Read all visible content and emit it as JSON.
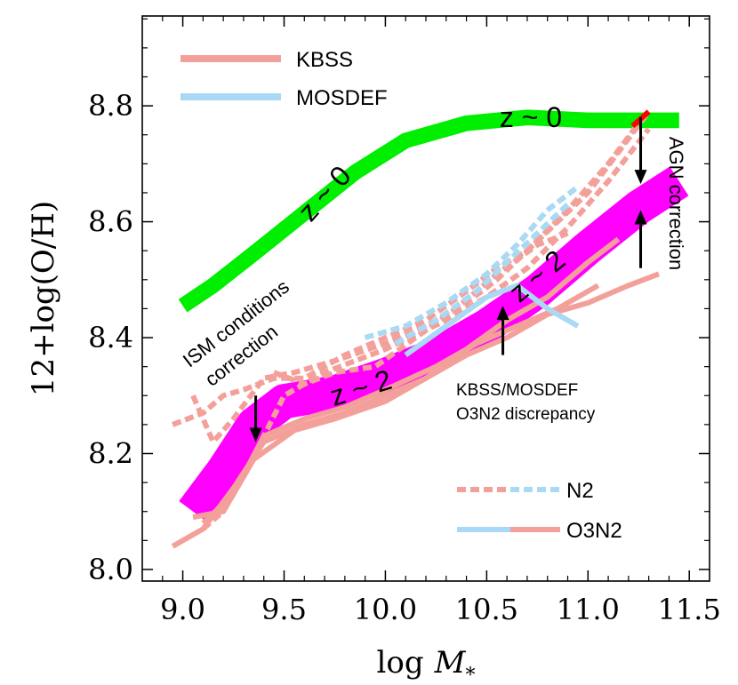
{
  "chart_data": {
    "type": "line",
    "xlabel_main": "log",
    "xlabel_var": "M",
    "xlabel_sub": "*",
    "ylabel": "12+log(O/H)",
    "xlim": [
      8.8,
      11.6
    ],
    "ylim": [
      7.98,
      8.955
    ],
    "x_ticks": [
      9.0,
      9.5,
      10.0,
      10.5,
      11.0,
      11.5
    ],
    "x_tick_labels": [
      "9.0",
      "9.5",
      "10.0",
      "10.5",
      "11.0",
      "11.5"
    ],
    "y_ticks": [
      8.0,
      8.2,
      8.4,
      8.6,
      8.8
    ],
    "y_tick_labels": [
      "8.0",
      "8.2",
      "8.4",
      "8.6",
      "8.8"
    ],
    "colors": {
      "kbss": "#f4a09a",
      "mosdef": "#a9d9f4",
      "z0": "#00ee00",
      "z2": "#ff00ff",
      "arrow": "#000000",
      "agn_tip": "#ff0000"
    },
    "bands": [
      {
        "name": "z0-band",
        "label": "z ~ 0",
        "color": "#00ee00",
        "width": 0.027,
        "x": [
          9.0,
          9.15,
          9.35,
          9.6,
          9.85,
          10.1,
          10.4,
          10.7,
          11.0,
          11.25,
          11.45
        ],
        "y": [
          8.455,
          8.49,
          8.545,
          8.615,
          8.685,
          8.74,
          8.77,
          8.78,
          8.775,
          8.775,
          8.775
        ]
      },
      {
        "name": "z2-band",
        "label": "z ~ 2",
        "color": "#ff00ff",
        "width": 0.06,
        "x": [
          9.05,
          9.2,
          9.35,
          9.5,
          9.75,
          10.0,
          10.25,
          10.5,
          10.75,
          11.0,
          11.25,
          11.45
        ],
        "y": [
          8.1,
          8.17,
          8.25,
          8.29,
          8.305,
          8.335,
          8.37,
          8.42,
          8.48,
          8.555,
          8.625,
          8.67
        ]
      }
    ],
    "series": [
      {
        "name": "KBSS N2",
        "style": "dashed",
        "color": "#f4a09a",
        "x": [
          8.95,
          9.1,
          9.2,
          9.3,
          9.45,
          9.6,
          9.8,
          10.0,
          10.2,
          10.4,
          10.55,
          10.7,
          10.85,
          11.0,
          11.15,
          11.3
        ],
        "y": [
          8.25,
          8.27,
          8.3,
          8.31,
          8.33,
          8.33,
          8.37,
          8.4,
          8.43,
          8.48,
          8.52,
          8.55,
          8.6,
          8.65,
          8.72,
          8.79
        ]
      },
      {
        "name": "KBSS N2 (2)",
        "style": "dashed",
        "color": "#f4a09a",
        "x": [
          9.05,
          9.15,
          9.25,
          9.4,
          9.55,
          9.75,
          10.0,
          10.2,
          10.4,
          10.55,
          10.7,
          10.9,
          11.1,
          11.25
        ],
        "y": [
          8.3,
          8.22,
          8.26,
          8.33,
          8.34,
          8.36,
          8.39,
          8.42,
          8.46,
          8.5,
          8.55,
          8.62,
          8.7,
          8.77
        ]
      },
      {
        "name": "KBSS N2 (3)",
        "style": "dashed",
        "color": "#f4a09a",
        "x": [
          9.1,
          9.2,
          9.3,
          9.5,
          9.7,
          10.0,
          10.3,
          10.5,
          10.7,
          10.9,
          11.1,
          11.3
        ],
        "y": [
          8.07,
          8.1,
          8.16,
          8.3,
          8.34,
          8.38,
          8.43,
          8.47,
          8.52,
          8.59,
          8.67,
          8.76
        ]
      },
      {
        "name": "KBSS N2 (4)",
        "style": "dashed",
        "color": "#f4a09a",
        "x": [
          9.45,
          9.6,
          9.75,
          9.95,
          10.15,
          10.35,
          10.55,
          10.75,
          10.9
        ],
        "y": [
          8.34,
          8.32,
          8.34,
          8.35,
          8.4,
          8.45,
          8.51,
          8.56,
          8.58
        ]
      },
      {
        "name": "MOSDEF N2",
        "style": "dashed",
        "color": "#a9d9f4",
        "x": [
          9.9,
          10.1,
          10.3,
          10.5,
          10.65,
          10.8,
          10.95
        ],
        "y": [
          8.4,
          8.42,
          8.46,
          8.51,
          8.56,
          8.62,
          8.66
        ]
      },
      {
        "name": "MOSDEF N2 (2)",
        "style": "dashed",
        "color": "#a9d9f4",
        "x": [
          10.05,
          10.25,
          10.45,
          10.6,
          10.75,
          10.9
        ],
        "y": [
          8.39,
          8.43,
          8.48,
          8.53,
          8.58,
          8.63
        ]
      },
      {
        "name": "KBSS O3N2",
        "style": "solid",
        "color": "#f4a09a",
        "x": [
          8.95,
          9.1,
          9.25,
          9.4,
          9.6,
          9.8,
          10.0,
          10.2,
          10.4,
          10.6,
          10.8,
          11.0,
          11.2,
          11.35
        ],
        "y": [
          8.04,
          8.07,
          8.14,
          8.22,
          8.25,
          8.27,
          8.3,
          8.33,
          8.37,
          8.4,
          8.44,
          8.46,
          8.49,
          8.51
        ]
      },
      {
        "name": "KBSS O3N2 (2)",
        "style": "solid",
        "color": "#f4a09a",
        "x": [
          9.05,
          9.2,
          9.35,
          9.55,
          9.75,
          10.0,
          10.2,
          10.4,
          10.6,
          10.8,
          11.0,
          11.15
        ],
        "y": [
          8.09,
          8.1,
          8.19,
          8.24,
          8.26,
          8.29,
          8.33,
          8.38,
          8.43,
          8.47,
          8.53,
          8.57
        ]
      },
      {
        "name": "KBSS O3N2 (3)",
        "style": "solid",
        "color": "#f4a09a",
        "x": [
          9.1,
          9.25,
          9.4,
          9.6,
          9.8,
          10.0,
          10.25,
          10.45,
          10.65,
          10.85,
          11.05
        ],
        "y": [
          8.08,
          8.13,
          8.23,
          8.26,
          8.28,
          8.31,
          8.35,
          8.39,
          8.42,
          8.45,
          8.49
        ]
      },
      {
        "name": "MOSDEF O3N2",
        "style": "solid",
        "color": "#a9d9f4",
        "x": [
          10.1,
          10.3,
          10.5,
          10.65,
          10.8,
          10.95
        ],
        "y": [
          8.37,
          8.42,
          8.47,
          8.49,
          8.45,
          8.42
        ]
      }
    ],
    "arrows": [
      {
        "name": "ism-correction-arrow",
        "x": 9.36,
        "y_from": 8.3,
        "y_to": 8.22
      },
      {
        "name": "agn-down-arrow",
        "x": 11.26,
        "y_from": 8.78,
        "y_to": 8.665
      },
      {
        "name": "agn-up-arrow",
        "x": 11.26,
        "y_from": 8.52,
        "y_to": 8.62
      },
      {
        "name": "discrepancy-arrow",
        "x": 10.58,
        "y_from": 8.37,
        "y_to": 8.455
      }
    ],
    "annotations": {
      "z0_label": "z ~ 0",
      "z0_label_2": "z ~ 0",
      "z2_label": "z ~ 2",
      "z2_label_2": "z ~ 2",
      "ism_line1": "ISM conditions",
      "ism_line2": "correction",
      "agn": "AGN correction",
      "disc_line1": "KBSS/MOSDEF",
      "disc_line2": "O3N2 discrepancy"
    },
    "legend_top": [
      {
        "label": "KBSS",
        "color": "#f4a09a"
      },
      {
        "label": "MOSDEF",
        "color": "#a9d9f4"
      }
    ],
    "legend_bottom": [
      {
        "label": "N2",
        "style": "dashed"
      },
      {
        "label": "O3N2",
        "style": "solid"
      }
    ]
  }
}
